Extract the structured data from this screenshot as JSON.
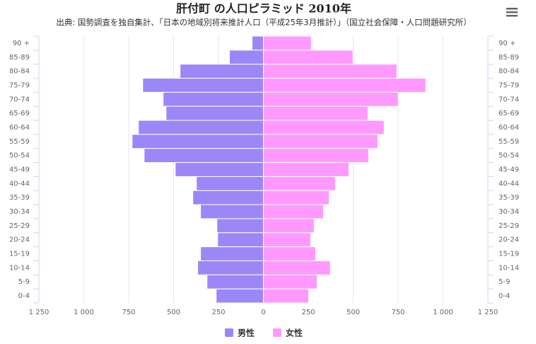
{
  "chart_data": {
    "type": "bar",
    "title": "肝付町 の人口ピラミッド 2010年",
    "subtitle": "出典: 国勢調査を独自集計、「日本の地域別将来推計人口（平成25年3月推計）」（国立社会保障・人口問題研究所）",
    "categories": [
      "90 +",
      "85-89",
      "80-84",
      "75-79",
      "70-74",
      "65-69",
      "60-64",
      "55-59",
      "50-54",
      "45-49",
      "40-44",
      "35-39",
      "30-34",
      "25-29",
      "20-24",
      "15-19",
      "10-14",
      "5-9",
      "0-4"
    ],
    "series": [
      {
        "name": "男性",
        "color": "#9b87f8",
        "values": [
          -63,
          -189,
          -464,
          -672,
          -558,
          -542,
          -696,
          -731,
          -664,
          -491,
          -373,
          -393,
          -350,
          -259,
          -255,
          -350,
          -366,
          -314,
          -263
        ]
      },
      {
        "name": "女性",
        "color": "#ff99ff",
        "values": [
          267,
          499,
          743,
          904,
          751,
          582,
          672,
          637,
          586,
          476,
          401,
          366,
          334,
          283,
          263,
          291,
          373,
          299,
          252
        ]
      }
    ],
    "xlim": [
      -1250,
      1250
    ],
    "xticks": [
      {
        "value": -1250,
        "label": "1 250"
      },
      {
        "value": -1000,
        "label": "1 000"
      },
      {
        "value": -750,
        "label": "750"
      },
      {
        "value": -500,
        "label": "500"
      },
      {
        "value": -250,
        "label": "250"
      },
      0,
      250,
      500,
      750,
      {
        "value": 1000,
        "label": "1 000"
      },
      {
        "value": 1250,
        "label": "1 250"
      }
    ],
    "grid": true
  }
}
